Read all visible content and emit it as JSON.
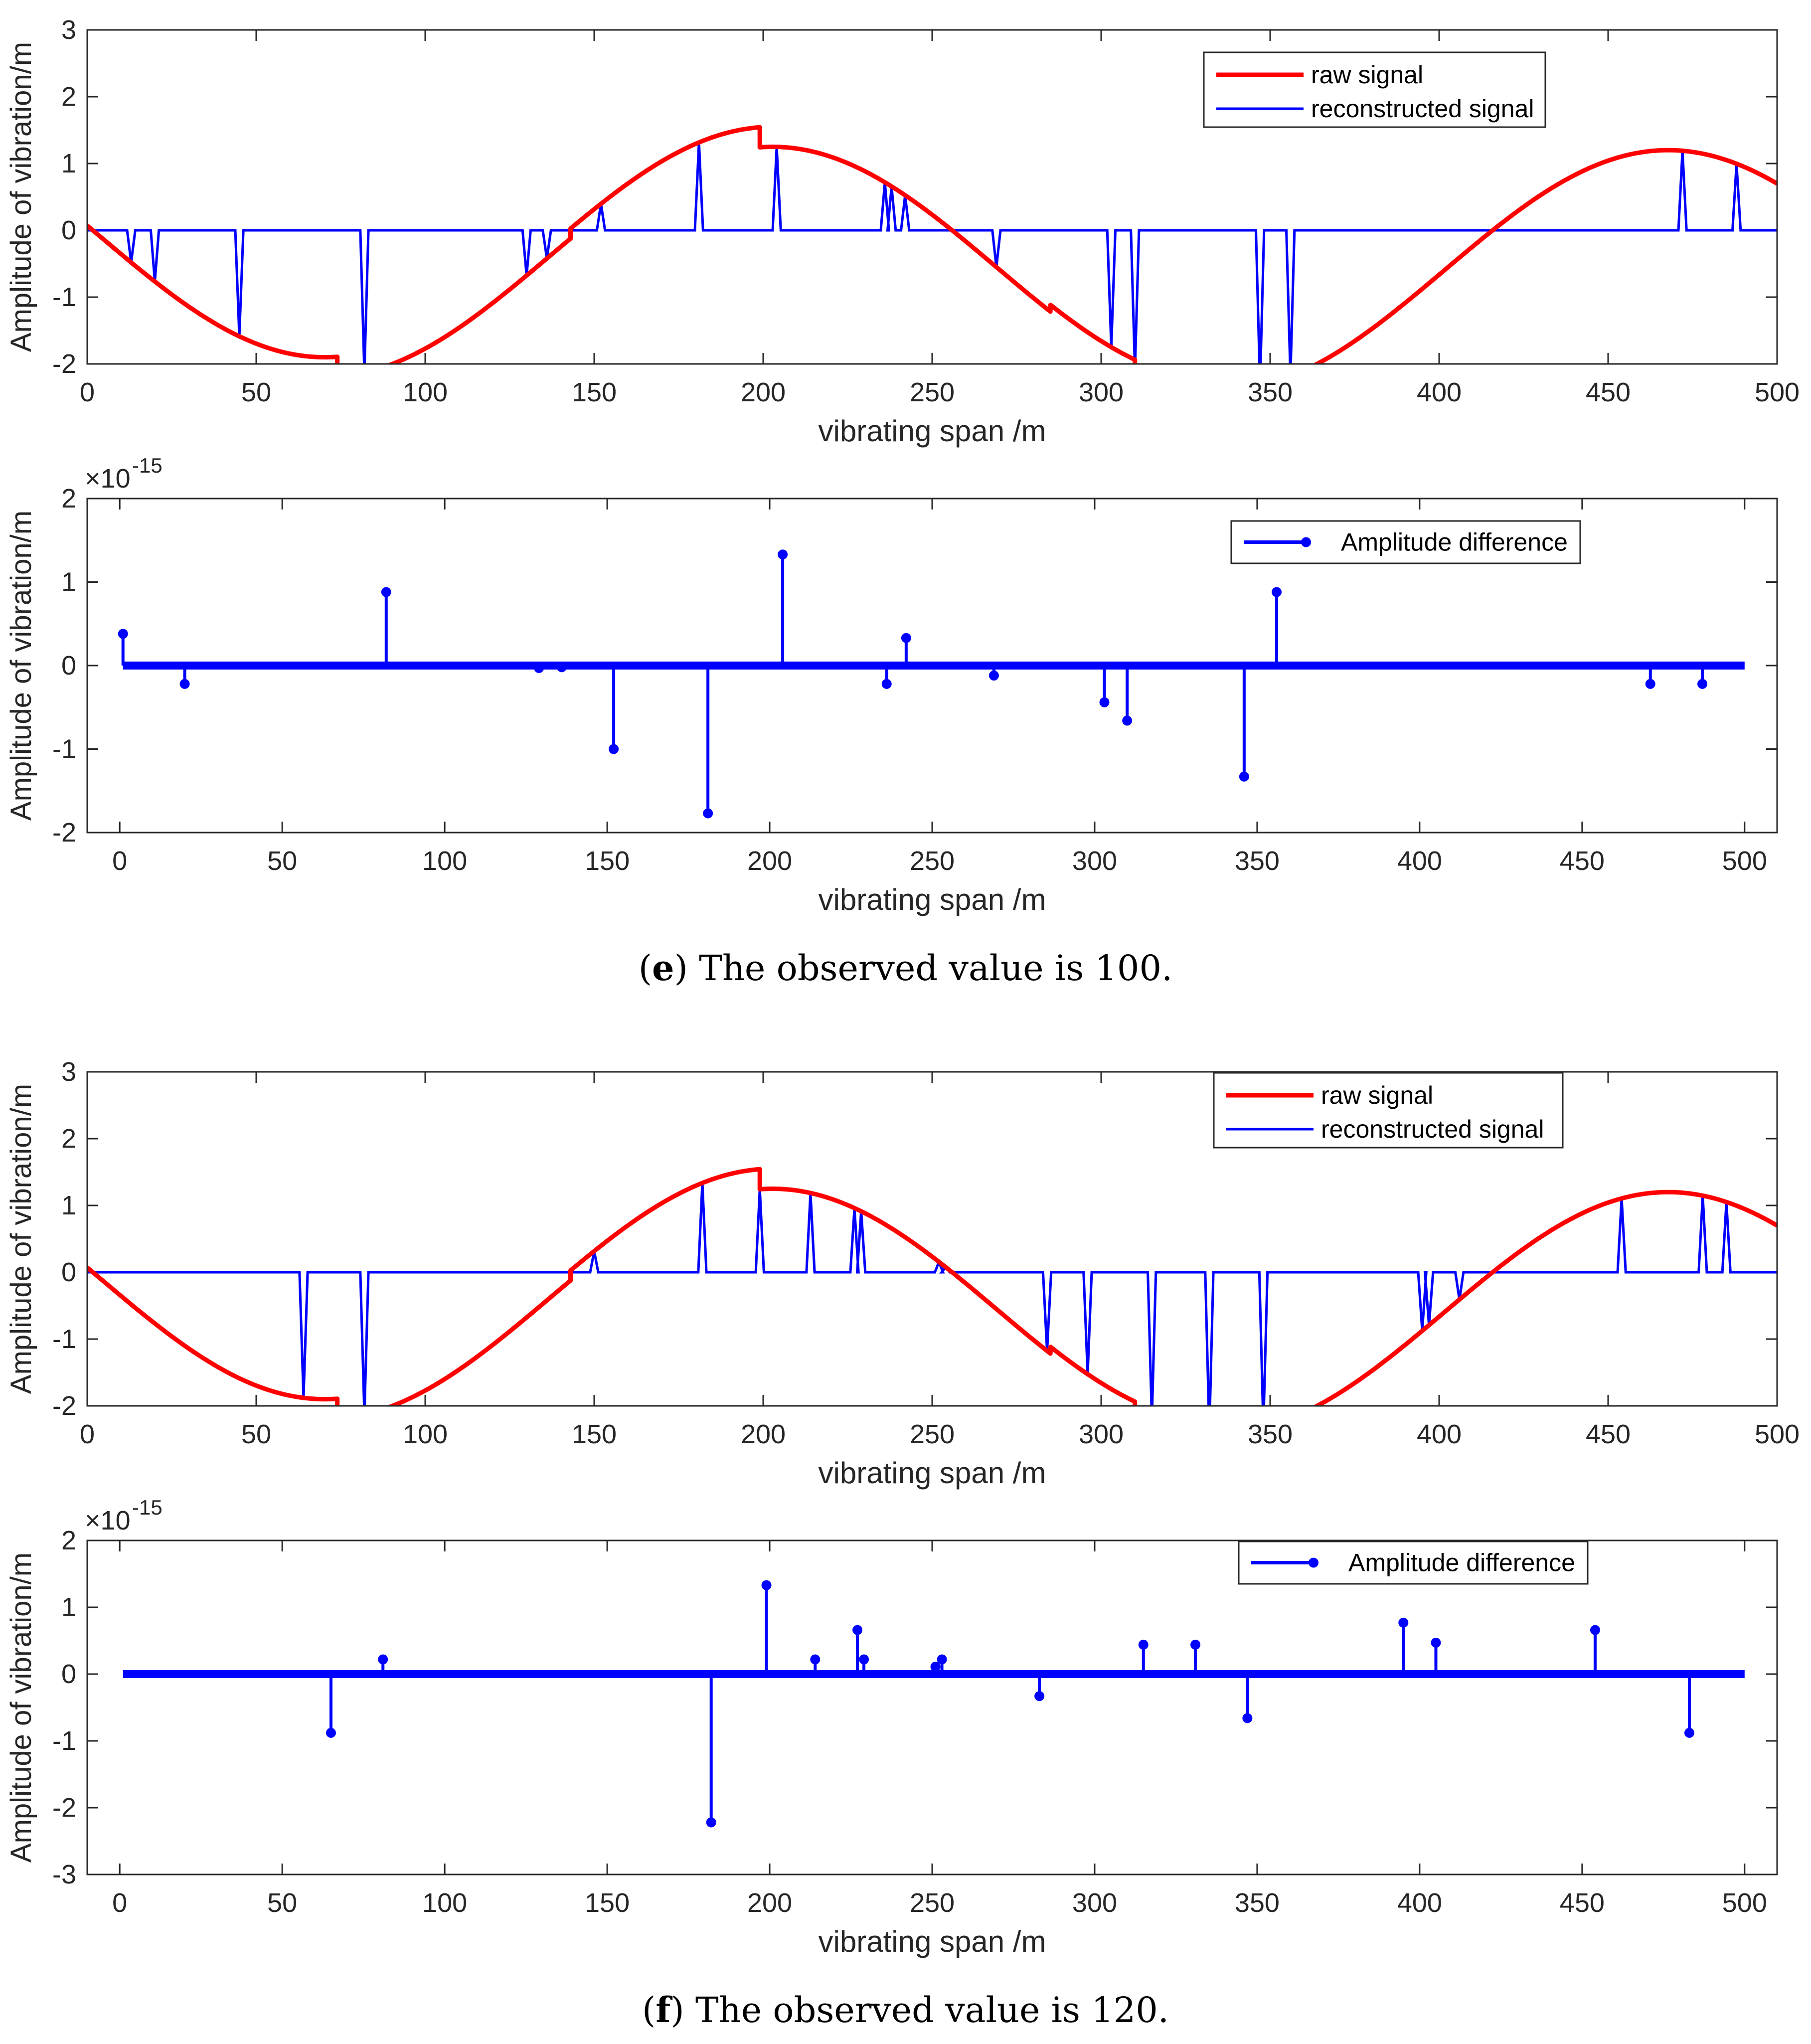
{
  "captions": [
    {
      "letter": "e",
      "text": " The observed value is 100."
    },
    {
      "letter": "f",
      "text": " The observed value is 120."
    }
  ],
  "colors": {
    "raw": "#ff0000",
    "reconstructed": "#0000ff",
    "difference": "#0000ff",
    "axis": "#262626",
    "grid_bg": "#ffffff"
  },
  "chart_data": [
    {
      "id": "e-signal",
      "type": "line",
      "title": "",
      "xlabel": "vibrating span /m",
      "ylabel": "Amplitude of vibration/m",
      "xlim": [
        0,
        500
      ],
      "ylim": [
        -2,
        3
      ],
      "xticks": [
        0,
        50,
        100,
        150,
        200,
        250,
        300,
        350,
        400,
        450,
        500
      ],
      "yticks": [
        -2,
        -1,
        0,
        1,
        2,
        3
      ],
      "legend_position": "top-right",
      "series": [
        {
          "name": "raw signal",
          "kind": "raw",
          "color": "#ff0000",
          "jumps": [
            [
              74,
              -0.3
            ],
            [
              143,
              0.15
            ],
            [
              199,
              -0.3
            ],
            [
              285,
              0.1
            ],
            [
              310,
              -0.15
            ]
          ]
        },
        {
          "name": "reconstructed signal",
          "kind": "spikes",
          "color": "#0000ff",
          "spikes": [
            13,
            20,
            45,
            82,
            130,
            136,
            152,
            181,
            204,
            236,
            238,
            242,
            269,
            303,
            310,
            347,
            356,
            472,
            488
          ]
        }
      ]
    },
    {
      "id": "e-diff",
      "type": "stem",
      "title": "",
      "xlabel": "vibrating span /m",
      "ylabel": "Amplitude of vibration/m",
      "exponent_label": "×10",
      "exponent_value": "-15",
      "xlim": [
        -10,
        510
      ],
      "ylim": [
        -2,
        2
      ],
      "xticks": [
        0,
        50,
        100,
        150,
        200,
        250,
        300,
        350,
        400,
        450,
        500
      ],
      "yticks": [
        -2,
        -1,
        0,
        1,
        2
      ],
      "legend_position": "top-right",
      "series": [
        {
          "name": "Amplitude difference",
          "color": "#0000ff",
          "stems": [
            [
              1,
              0.38
            ],
            [
              20,
              -0.22
            ],
            [
              82,
              0.88
            ],
            [
              129,
              -0.03
            ],
            [
              136,
              -0.02
            ],
            [
              152,
              -1.0
            ],
            [
              181,
              -1.77
            ],
            [
              204,
              1.33
            ],
            [
              236,
              -0.22
            ],
            [
              242,
              0.33
            ],
            [
              269,
              -0.12
            ],
            [
              303,
              -0.44
            ],
            [
              310,
              -0.66
            ],
            [
              346,
              -1.33
            ],
            [
              356,
              0.88
            ],
            [
              471,
              -0.22
            ],
            [
              487,
              -0.22
            ]
          ]
        }
      ]
    },
    {
      "id": "f-signal",
      "type": "line",
      "title": "",
      "xlabel": "vibrating span /m",
      "ylabel": "Amplitude of vibration/m",
      "xlim": [
        0,
        500
      ],
      "ylim": [
        -2,
        3
      ],
      "xticks": [
        0,
        50,
        100,
        150,
        200,
        250,
        300,
        350,
        400,
        450,
        500
      ],
      "yticks": [
        -2,
        -1,
        0,
        1,
        2,
        3
      ],
      "legend_position": "top-right",
      "series": [
        {
          "name": "raw signal",
          "kind": "raw",
          "color": "#ff0000",
          "jumps": [
            [
              74,
              -0.3
            ],
            [
              143,
              0.15
            ],
            [
              199,
              -0.3
            ],
            [
              285,
              0.1
            ],
            [
              310,
              -0.15
            ]
          ]
        },
        {
          "name": "reconstructed signal",
          "kind": "spikes",
          "color": "#0000ff",
          "spikes": [
            64,
            82,
            150,
            182,
            199,
            214,
            227,
            229,
            252,
            254,
            284,
            296,
            315,
            332,
            348,
            395,
            397,
            406,
            454,
            478,
            485
          ]
        }
      ]
    },
    {
      "id": "f-diff",
      "type": "stem",
      "title": "",
      "xlabel": "vibrating span /m",
      "ylabel": "Amplitude of vibration/m",
      "exponent_label": "×10",
      "exponent_value": "-15",
      "xlim": [
        -10,
        510
      ],
      "ylim": [
        -3,
        2
      ],
      "xticks": [
        0,
        50,
        100,
        150,
        200,
        250,
        300,
        350,
        400,
        450,
        500
      ],
      "yticks": [
        -3,
        -2,
        -1,
        0,
        1,
        2
      ],
      "legend_position": "top-right",
      "series": [
        {
          "name": "Amplitude difference",
          "color": "#0000ff",
          "stems": [
            [
              65,
              -0.88
            ],
            [
              81,
              0.22
            ],
            [
              182,
              -2.22
            ],
            [
              199,
              1.33
            ],
            [
              214,
              0.22
            ],
            [
              227,
              0.66
            ],
            [
              229,
              0.22
            ],
            [
              251,
              0.11
            ],
            [
              253,
              0.22
            ],
            [
              283,
              -0.33
            ],
            [
              315,
              0.44
            ],
            [
              331,
              0.44
            ],
            [
              347,
              -0.66
            ],
            [
              395,
              0.77
            ],
            [
              405,
              0.47
            ],
            [
              454,
              0.66
            ],
            [
              483,
              -0.88
            ]
          ]
        }
      ]
    }
  ]
}
